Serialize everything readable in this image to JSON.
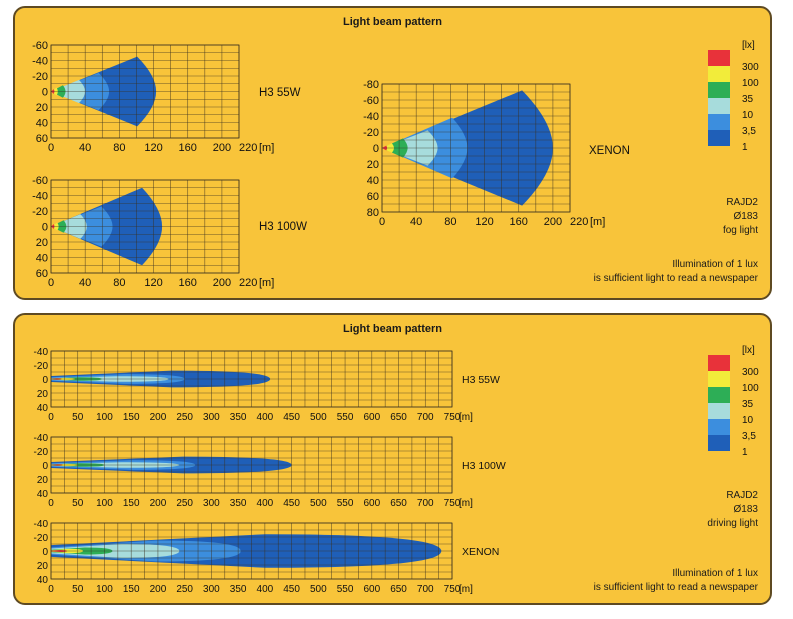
{
  "colors": {
    "panel_bg": "#f8c43a",
    "grid": "#3a3020",
    "levels": [
      "#1f5fb8",
      "#3c8ede",
      "#a7dcdc",
      "#2dae56",
      "#f2ec3a",
      "#e8323a"
    ]
  },
  "legend": {
    "unit": "[lx]",
    "labels": [
      "300",
      "100",
      "35",
      "10",
      "3,5",
      "1"
    ]
  },
  "fog_panel": {
    "title": "Light beam pattern",
    "lamp": "RAJD2",
    "diameter": "Ø183",
    "type": "fog light",
    "note_line1": "Illumination of 1 lux",
    "note_line2": "is sufficient light to read a newspaper"
  },
  "driving_panel": {
    "title": "Light beam pattern",
    "lamp": "RAJD2",
    "diameter": "Ø183",
    "type": "driving light",
    "note_line1": "Illumination of 1 lux",
    "note_line2": "is sufficient light to read a newspaper"
  },
  "chart_data": [
    {
      "type": "area",
      "panel": "fog",
      "label": "H3 55W",
      "x_ticks": [
        0,
        40,
        80,
        120,
        160,
        200,
        220
      ],
      "x_unit": "[m]",
      "y_ticks": [
        -60,
        -40,
        -20,
        0,
        20,
        40,
        60
      ],
      "xlim": [
        0,
        220
      ],
      "ylim": [
        -60,
        60
      ],
      "grid": true,
      "reach_m": {
        "1": 123,
        "3.5": 68,
        "10": 40,
        "35": 17,
        "100": 8,
        "300": 4
      },
      "half_width_m": {
        "1": 45,
        "3.5": 24,
        "10": 15,
        "35": 8,
        "100": 5,
        "300": 3
      }
    },
    {
      "type": "area",
      "panel": "fog",
      "label": "H3 100W",
      "x_ticks": [
        0,
        40,
        80,
        120,
        160,
        200,
        220
      ],
      "x_unit": "[m]",
      "y_ticks": [
        -60,
        -40,
        -20,
        0,
        20,
        40,
        60
      ],
      "xlim": [
        0,
        220
      ],
      "ylim": [
        -60,
        60
      ],
      "grid": true,
      "reach_m": {
        "1": 130,
        "3.5": 72,
        "10": 42,
        "35": 18,
        "100": 9,
        "300": 4
      },
      "half_width_m": {
        "1": 50,
        "3.5": 26,
        "10": 16,
        "35": 8,
        "100": 5,
        "300": 3
      }
    },
    {
      "type": "area",
      "panel": "fog",
      "label": "XENON",
      "x_ticks": [
        0,
        40,
        80,
        120,
        160,
        200,
        220
      ],
      "x_unit": "[m]",
      "y_ticks": [
        -80,
        -60,
        -40,
        -20,
        0,
        20,
        40,
        60,
        80
      ],
      "xlim": [
        0,
        220
      ],
      "ylim": [
        -80,
        80
      ],
      "grid": true,
      "reach_m": {
        "1": 200,
        "3.5": 100,
        "10": 65,
        "35": 30,
        "100": 14,
        "300": 6
      },
      "half_width_m": {
        "1": 72,
        "3.5": 38,
        "10": 22,
        "35": 12,
        "100": 6,
        "300": 3
      }
    },
    {
      "type": "area",
      "panel": "driving",
      "label": "H3 55W",
      "x_ticks": [
        0,
        50,
        100,
        150,
        200,
        250,
        300,
        350,
        400,
        450,
        500,
        550,
        600,
        650,
        700,
        750
      ],
      "x_unit": "[m]",
      "y_ticks": [
        -40,
        -20,
        0,
        20,
        40
      ],
      "xlim": [
        0,
        750
      ],
      "ylim": [
        -40,
        40
      ],
      "grid": true,
      "reach_m": {
        "1": 410,
        "3.5": 250,
        "10": 220,
        "35": 95,
        "100": 45,
        "300": 20
      },
      "half_width_m": {
        "1": 12,
        "3.5": 7,
        "10": 4,
        "35": 2.5,
        "100": 1.6,
        "300": 1
      }
    },
    {
      "type": "area",
      "panel": "driving",
      "label": "H3 100W",
      "x_ticks": [
        0,
        50,
        100,
        150,
        200,
        250,
        300,
        350,
        400,
        450,
        500,
        550,
        600,
        650,
        700,
        750
      ],
      "x_unit": "[m]",
      "y_ticks": [
        -40,
        -20,
        0,
        20,
        40
      ],
      "xlim": [
        0,
        750
      ],
      "ylim": [
        -40,
        40
      ],
      "grid": true,
      "reach_m": {
        "1": 450,
        "3.5": 270,
        "10": 240,
        "35": 100,
        "100": 50,
        "300": 22
      },
      "half_width_m": {
        "1": 12,
        "3.5": 7,
        "10": 4,
        "35": 2.5,
        "100": 1.6,
        "300": 1
      }
    },
    {
      "type": "area",
      "panel": "driving",
      "label": "XENON",
      "x_ticks": [
        0,
        50,
        100,
        150,
        200,
        250,
        300,
        350,
        400,
        450,
        500,
        550,
        600,
        650,
        700,
        750
      ],
      "x_unit": "[m]",
      "y_ticks": [
        -40,
        -20,
        0,
        20,
        40
      ],
      "xlim": [
        0,
        750
      ],
      "ylim": [
        -40,
        40
      ],
      "grid": true,
      "reach_m": {
        "1": 730,
        "3.5": 355,
        "10": 240,
        "35": 115,
        "100": 60,
        "300": 30
      },
      "half_width_m": {
        "1": 24,
        "3.5": 15,
        "10": 10,
        "35": 5,
        "100": 3,
        "300": 1.5
      }
    }
  ]
}
